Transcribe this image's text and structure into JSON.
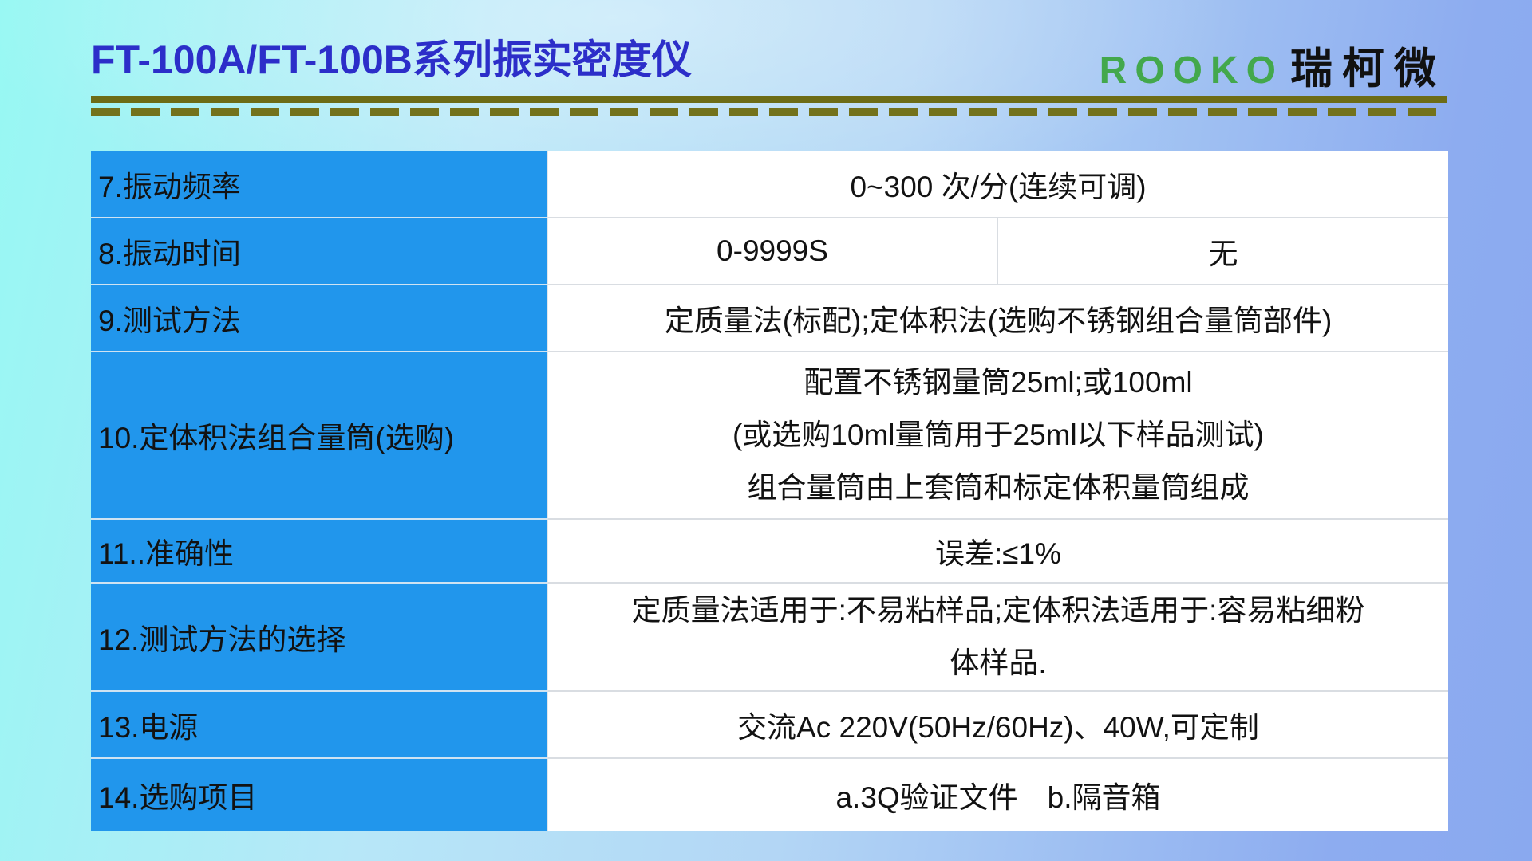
{
  "header": {
    "title": "FT-100A/FT-100B系列振实密度仪",
    "brand_latin": "ROOKO",
    "brand_cjk": "瑞柯微"
  },
  "colors": {
    "title_blue": "#2c2ec9",
    "brand_green": "#43a84c",
    "rule_olive": "#6d6c16",
    "label_cell_blue": "#2196ec",
    "bg_left_cyan": "#97f8f3",
    "bg_right_periwinkle": "#8aa9ef"
  },
  "table": {
    "rows": [
      {
        "label": "7.振动频率",
        "value": "0~300 次/分(连续可调)"
      },
      {
        "label": "8.振动时间",
        "value_left": "0-9999S",
        "value_right": "无"
      },
      {
        "label": "9.测试方法",
        "value": "定质量法(标配);定体积法(选购不锈钢组合量筒部件)"
      },
      {
        "label": "10.定体积法组合量筒(选购)",
        "lines": [
          "配置不锈钢量筒25ml;或100ml",
          "(或选购10ml量筒用于25ml以下样品测试)",
          "组合量筒由上套筒和标定体积量筒组成"
        ]
      },
      {
        "label": "11..准确性",
        "value": "误差:≤1%"
      },
      {
        "label": "12.测试方法的选择",
        "lines": [
          "定质量法适用于:不易粘样品;定体积法适用于:容易粘细粉",
          "体样品."
        ]
      },
      {
        "label": "13.电源",
        "value": "交流Ac 220V(50Hz/60Hz)、40W,可定制"
      },
      {
        "label": "14.选购项目",
        "value": "a.3Q验证文件　b.隔音箱"
      }
    ]
  }
}
